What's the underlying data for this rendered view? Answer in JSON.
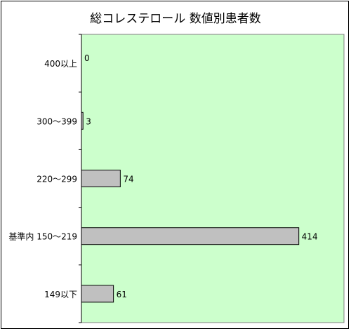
{
  "chart_data": {
    "type": "bar",
    "orientation": "horizontal",
    "title": "総コレステロール 数値別患者数",
    "xlabel": "",
    "ylabel": "",
    "categories": [
      "400以上",
      "300～399",
      "220～299",
      "基準内 150～219",
      "149以下"
    ],
    "values": [
      0,
      3,
      74,
      414,
      61
    ],
    "xlim": [
      0,
      500
    ],
    "grid": false,
    "legend": "none",
    "colors": {
      "plot_background": "#ccffcc",
      "bar_fill": "#c0c0c0",
      "bar_stroke": "#000000",
      "axis": "#000000"
    }
  }
}
